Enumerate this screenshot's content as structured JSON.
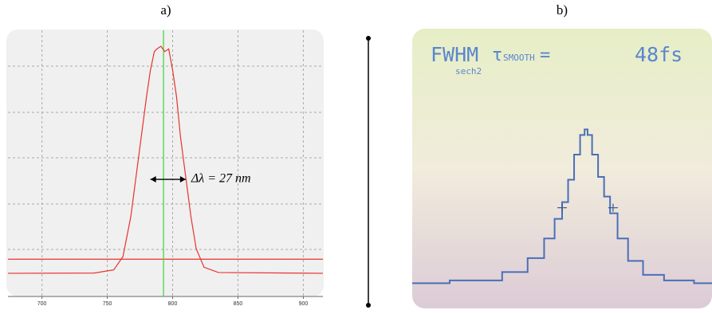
{
  "chart_data": [
    {
      "type": "line",
      "label": "a)",
      "xlim": [
        674,
        915
      ],
      "ylim": [
        0,
        1
      ],
      "xticks": [
        700,
        750,
        800,
        850,
        900
      ],
      "grid": true,
      "x": [
        674,
        740,
        755,
        762,
        768,
        772,
        776,
        780,
        783,
        786,
        788,
        791,
        794,
        797,
        800,
        803,
        806,
        810,
        814,
        818,
        824,
        835,
        915
      ],
      "series": [
        {
          "color": "#e8322d",
          "values": [
            0.087,
            0.088,
            0.1,
            0.15,
            0.3,
            0.45,
            0.6,
            0.75,
            0.85,
            0.92,
            0.93,
            0.94,
            0.92,
            0.93,
            0.85,
            0.75,
            0.6,
            0.45,
            0.3,
            0.18,
            0.11,
            0.09,
            0.087
          ]
        }
      ],
      "hline": {
        "value": 0.14,
        "color": "#e8322d"
      },
      "vline": {
        "value": 793,
        "color": "#3ad43a"
      },
      "annotation": {
        "text": "Δλ = 27 nm",
        "x": [
          783,
          810
        ],
        "y": 0.44
      }
    },
    {
      "type": "line",
      "label": "b)",
      "xlim": [
        0,
        100
      ],
      "ylim": [
        0,
        100
      ],
      "screen_text": [
        "FWHM",
        "sech2",
        "τ",
        "SMOOTH",
        "=",
        "48fs"
      ],
      "x": [
        0,
        25,
        35,
        42,
        46,
        49,
        51,
        53,
        55,
        57,
        58,
        59,
        61,
        63,
        65,
        67,
        70,
        74,
        80,
        88,
        100
      ],
      "series": [
        {
          "color": "#4a6fb8",
          "values": [
            9,
            10,
            13,
            18,
            25,
            32,
            38,
            46,
            55,
            62,
            64,
            62,
            55,
            47,
            40,
            34,
            25,
            17,
            12,
            10,
            9
          ]
        }
      ],
      "markers": [
        {
          "x": 50,
          "y": 36
        },
        {
          "x": 67,
          "y": 36
        }
      ]
    }
  ]
}
